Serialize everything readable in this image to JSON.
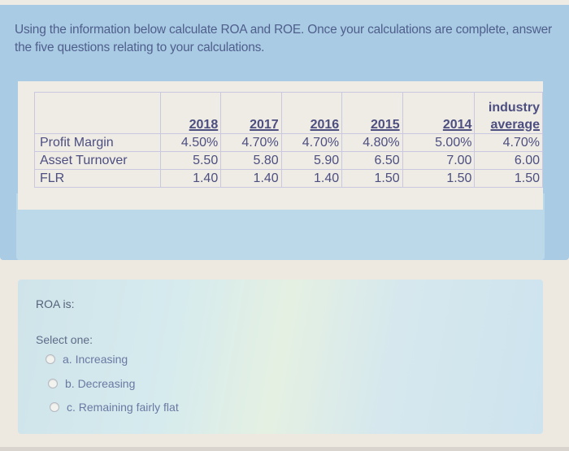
{
  "instructions": {
    "text": "Using the information below calculate ROA and ROE. Once your calculations are complete, answer the five questions relating to your calculations."
  },
  "table": {
    "columns": [
      "",
      "2018",
      "2017",
      "2016",
      "2015",
      "2014",
      "industry average"
    ],
    "header_cells": {
      "c2018": "2018",
      "c2017": "2017",
      "c2016": "2016",
      "c2015": "2015",
      "c2014": "2014",
      "industry_line1": "industry",
      "industry_line2": "average"
    },
    "rows": [
      {
        "label": "Profit Margin",
        "values": [
          "4.50%",
          "4.70%",
          "4.70%",
          "4.80%",
          "5.00%",
          "4.70%"
        ]
      },
      {
        "label": "Asset Turnover",
        "values": [
          "5.50",
          "5.80",
          "5.90",
          "6.50",
          "7.00",
          "6.00"
        ]
      },
      {
        "label": "FLR",
        "values": [
          "1.40",
          "1.40",
          "1.40",
          "1.50",
          "1.50",
          "1.50"
        ]
      }
    ]
  },
  "question": {
    "text": "ROA is:",
    "select_prompt": "Select one:",
    "options": [
      {
        "label": "a. Increasing",
        "selected": false
      },
      {
        "label": "b. Decreasing",
        "selected": false
      },
      {
        "label": "c. Remaining fairly flat",
        "selected": false
      }
    ]
  },
  "colors": {
    "info_panel_bg": "#a9cbe4",
    "text_primary": "#4f5f8c",
    "table_text": "#4c4f80",
    "question_panel_bg": "#d4e8ee"
  }
}
